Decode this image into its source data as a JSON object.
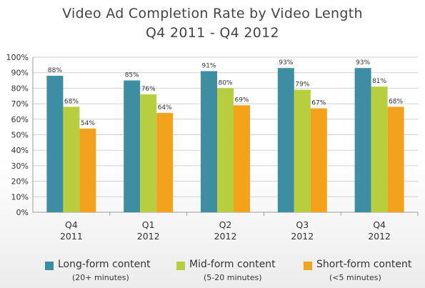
{
  "chart_data": {
    "type": "bar",
    "title": "Video Ad Completion Rate by Video Length",
    "subtitle": "Q4 2011 - Q4 2012",
    "categories": [
      [
        "Q4",
        "2011"
      ],
      [
        "Q1",
        "2012"
      ],
      [
        "Q2",
        "2012"
      ],
      [
        "Q3",
        "2012"
      ],
      [
        "Q4",
        "2012"
      ]
    ],
    "series": [
      {
        "name": "Long-form content",
        "note": "(20+ minutes)",
        "color": "#3d8ea3",
        "values": [
          88,
          85,
          91,
          93,
          93
        ]
      },
      {
        "name": "Mid-form content",
        "note": "(5-20 minutes)",
        "color": "#b7cf3f",
        "values": [
          68,
          76,
          80,
          79,
          81
        ]
      },
      {
        "name": "Short-form content",
        "note": "(<5 minutes)",
        "color": "#f2a31b",
        "values": [
          54,
          64,
          69,
          67,
          68
        ]
      }
    ],
    "value_suffix": "%",
    "yticks": [
      "0%",
      "10%",
      "20%",
      "30%",
      "40%",
      "50%",
      "60%",
      "70%",
      "80%",
      "90%",
      "100%"
    ],
    "ylim": [
      0,
      100
    ],
    "grid": true,
    "legend": "bottom"
  }
}
